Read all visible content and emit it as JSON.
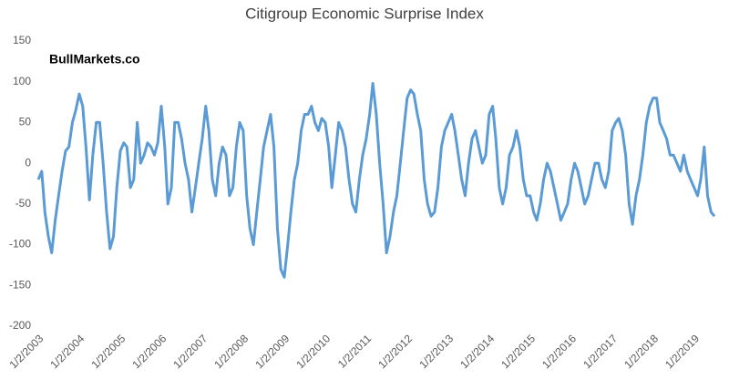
{
  "chart_data": {
    "type": "line",
    "title": "Citigroup Economic Surprise Index",
    "annotation": "BullMarkets.co",
    "x": [
      "2003-01-02",
      "2003-02-02",
      "2003-03-02",
      "2003-04-02",
      "2003-05-02",
      "2003-06-02",
      "2003-07-02",
      "2003-08-02",
      "2003-09-02",
      "2003-10-02",
      "2003-11-02",
      "2003-12-02",
      "2004-01-02",
      "2004-02-02",
      "2004-03-02",
      "2004-04-02",
      "2004-05-02",
      "2004-06-02",
      "2004-07-02",
      "2004-08-02",
      "2004-09-02",
      "2004-10-02",
      "2004-11-02",
      "2004-12-02",
      "2005-01-02",
      "2005-02-02",
      "2005-03-02",
      "2005-04-02",
      "2005-05-02",
      "2005-06-02",
      "2005-07-02",
      "2005-08-02",
      "2005-09-02",
      "2005-10-02",
      "2005-11-02",
      "2005-12-02",
      "2006-01-02",
      "2006-02-02",
      "2006-03-02",
      "2006-04-02",
      "2006-05-02",
      "2006-06-02",
      "2006-07-02",
      "2006-08-02",
      "2006-09-02",
      "2006-10-02",
      "2006-11-02",
      "2006-12-02",
      "2007-01-02",
      "2007-02-02",
      "2007-03-02",
      "2007-04-02",
      "2007-05-02",
      "2007-06-02",
      "2007-07-02",
      "2007-08-02",
      "2007-09-02",
      "2007-10-02",
      "2007-11-02",
      "2007-12-02",
      "2008-01-02",
      "2008-02-02",
      "2008-03-02",
      "2008-04-02",
      "2008-05-02",
      "2008-06-02",
      "2008-07-02",
      "2008-08-02",
      "2008-09-02",
      "2008-10-02",
      "2008-11-02",
      "2008-12-02",
      "2009-01-02",
      "2009-02-02",
      "2009-03-02",
      "2009-04-02",
      "2009-05-02",
      "2009-06-02",
      "2009-07-02",
      "2009-08-02",
      "2009-09-02",
      "2009-10-02",
      "2009-11-02",
      "2009-12-02",
      "2010-01-02",
      "2010-02-02",
      "2010-03-02",
      "2010-04-02",
      "2010-05-02",
      "2010-06-02",
      "2010-07-02",
      "2010-08-02",
      "2010-09-02",
      "2010-10-02",
      "2010-11-02",
      "2010-12-02",
      "2011-01-02",
      "2011-02-02",
      "2011-03-02",
      "2011-04-02",
      "2011-05-02",
      "2011-06-02",
      "2011-07-02",
      "2011-08-02",
      "2011-09-02",
      "2011-10-02",
      "2011-11-02",
      "2011-12-02",
      "2012-01-02",
      "2012-02-02",
      "2012-03-02",
      "2012-04-02",
      "2012-05-02",
      "2012-06-02",
      "2012-07-02",
      "2012-08-02",
      "2012-09-02",
      "2012-10-02",
      "2012-11-02",
      "2012-12-02",
      "2013-01-02",
      "2013-02-02",
      "2013-03-02",
      "2013-04-02",
      "2013-05-02",
      "2013-06-02",
      "2013-07-02",
      "2013-08-02",
      "2013-09-02",
      "2013-10-02",
      "2013-11-02",
      "2013-12-02",
      "2014-01-02",
      "2014-02-02",
      "2014-03-02",
      "2014-04-02",
      "2014-05-02",
      "2014-06-02",
      "2014-07-02",
      "2014-08-02",
      "2014-09-02",
      "2014-10-02",
      "2014-11-02",
      "2014-12-02",
      "2015-01-02",
      "2015-02-02",
      "2015-03-02",
      "2015-04-02",
      "2015-05-02",
      "2015-06-02",
      "2015-07-02",
      "2015-08-02",
      "2015-09-02",
      "2015-10-02",
      "2015-11-02",
      "2015-12-02",
      "2016-01-02",
      "2016-02-02",
      "2016-03-02",
      "2016-04-02",
      "2016-05-02",
      "2016-06-02",
      "2016-07-02",
      "2016-08-02",
      "2016-09-02",
      "2016-10-02",
      "2016-11-02",
      "2016-12-02",
      "2017-01-02",
      "2017-02-02",
      "2017-03-02",
      "2017-04-02",
      "2017-05-02",
      "2017-06-02",
      "2017-07-02",
      "2017-08-02",
      "2017-09-02",
      "2017-10-02",
      "2017-11-02",
      "2017-12-02",
      "2018-01-02",
      "2018-02-02",
      "2018-03-02",
      "2018-04-02",
      "2018-05-02",
      "2018-06-02",
      "2018-07-02",
      "2018-08-02",
      "2018-09-02",
      "2018-10-02",
      "2018-11-02",
      "2018-12-02",
      "2019-01-02",
      "2019-02-02",
      "2019-03-02",
      "2019-04-02",
      "2019-05-02",
      "2019-06-02",
      "2019-07-02"
    ],
    "series": [
      {
        "color": "#5b9bd5",
        "values": [
          -20,
          -10,
          -60,
          -90,
          -110,
          -70,
          -40,
          -10,
          15,
          20,
          50,
          65,
          85,
          70,
          20,
          -45,
          10,
          50,
          50,
          0,
          -60,
          -105,
          -90,
          -30,
          15,
          25,
          20,
          -30,
          -20,
          50,
          0,
          10,
          25,
          20,
          10,
          25,
          70,
          20,
          -50,
          -30,
          50,
          50,
          30,
          0,
          -20,
          -60,
          -30,
          0,
          30,
          70,
          40,
          -20,
          -40,
          0,
          20,
          10,
          -40,
          -30,
          20,
          50,
          40,
          -40,
          -80,
          -100,
          -60,
          -20,
          20,
          40,
          60,
          20,
          -80,
          -130,
          -140,
          -100,
          -60,
          -20,
          0,
          40,
          60,
          60,
          70,
          50,
          40,
          55,
          50,
          20,
          -30,
          10,
          50,
          40,
          20,
          -20,
          -50,
          -60,
          -20,
          10,
          30,
          60,
          98,
          60,
          0,
          -50,
          -110,
          -90,
          -60,
          -40,
          0,
          40,
          80,
          90,
          85,
          60,
          40,
          -20,
          -50,
          -65,
          -60,
          -30,
          20,
          40,
          50,
          60,
          40,
          10,
          -20,
          -40,
          0,
          30,
          40,
          20,
          0,
          10,
          60,
          70,
          30,
          -30,
          -50,
          -30,
          10,
          20,
          40,
          20,
          -20,
          -40,
          -40,
          -60,
          -70,
          -50,
          -20,
          0,
          -10,
          -30,
          -50,
          -70,
          -60,
          -50,
          -20,
          0,
          -10,
          -30,
          -50,
          -40,
          -20,
          0,
          0,
          -20,
          -30,
          -10,
          40,
          50,
          55,
          40,
          10,
          -50,
          -75,
          -40,
          -20,
          10,
          50,
          70,
          80,
          80,
          50,
          40,
          30,
          10,
          10,
          0,
          -10,
          10,
          -10,
          -20,
          -30,
          -40,
          -20,
          20,
          -40,
          -60,
          -65
        ]
      }
    ],
    "xlim": [
      "2003-01-02",
      "2019-07-02"
    ],
    "xticks": [
      {
        "value": "2003-01-02",
        "label": "1/2/2003"
      },
      {
        "value": "2004-01-02",
        "label": "1/2/2004"
      },
      {
        "value": "2005-01-02",
        "label": "1/2/2005"
      },
      {
        "value": "2006-01-02",
        "label": "1/2/2006"
      },
      {
        "value": "2007-01-02",
        "label": "1/2/2007"
      },
      {
        "value": "2008-01-02",
        "label": "1/2/2008"
      },
      {
        "value": "2009-01-02",
        "label": "1/2/2009"
      },
      {
        "value": "2010-01-02",
        "label": "1/2/2010"
      },
      {
        "value": "2011-01-02",
        "label": "1/2/2011"
      },
      {
        "value": "2012-01-02",
        "label": "1/2/2012"
      },
      {
        "value": "2013-01-02",
        "label": "1/2/2013"
      },
      {
        "value": "2014-01-02",
        "label": "1/2/2014"
      },
      {
        "value": "2015-01-02",
        "label": "1/2/2015"
      },
      {
        "value": "2016-01-02",
        "label": "1/2/2016"
      },
      {
        "value": "2017-01-02",
        "label": "1/2/2017"
      },
      {
        "value": "2018-01-02",
        "label": "1/2/2018"
      },
      {
        "value": "2019-01-02",
        "label": "1/2/2019"
      }
    ],
    "ylim": [
      -200,
      150
    ],
    "yticks": [
      -200,
      -150,
      -100,
      -50,
      0,
      50,
      100,
      150
    ],
    "grid": false
  }
}
